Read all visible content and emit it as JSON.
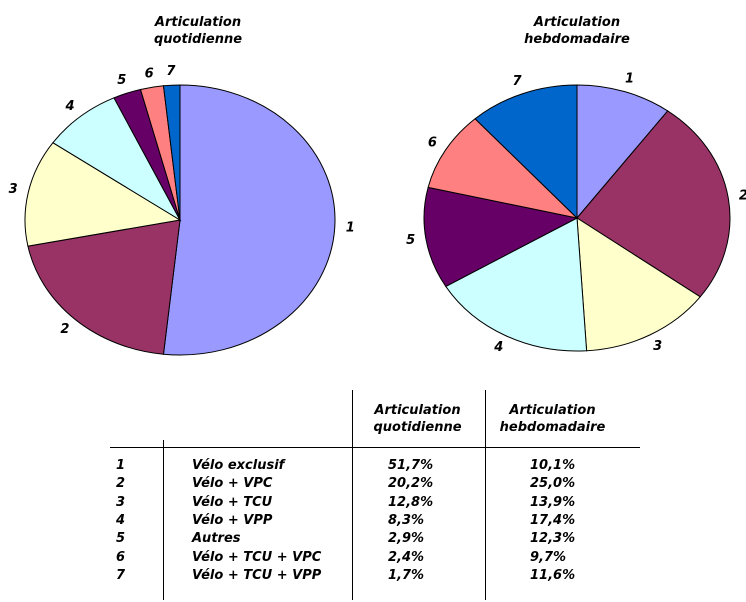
{
  "chart_data": [
    {
      "type": "pie",
      "title": "Articulation quotidienne",
      "categories": [
        "1",
        "2",
        "3",
        "4",
        "5",
        "6",
        "7"
      ],
      "values": [
        51.7,
        20.2,
        12.8,
        8.3,
        2.9,
        2.4,
        1.7
      ],
      "value_labels": [
        "51,7%",
        "20,2%",
        "12,8%",
        "8,3%",
        "2,9%",
        "2,4%",
        "1,7%"
      ],
      "colors": [
        "#9999ff",
        "#993366",
        "#ffffcc",
        "#ccffff",
        "#660066",
        "#ff8080",
        "#0066cc"
      ]
    },
    {
      "type": "pie",
      "title": "Articulation hebdomadaire",
      "categories": [
        "1",
        "2",
        "3",
        "4",
        "5",
        "6",
        "7"
      ],
      "values": [
        10.1,
        25.0,
        13.9,
        17.4,
        12.3,
        9.7,
        11.6
      ],
      "value_labels": [
        "10,1%",
        "25,0%",
        "13,9%",
        "17,4%",
        "12,3%",
        "9,7%",
        "11,6%"
      ],
      "colors": [
        "#9999ff",
        "#993366",
        "#ffffcc",
        "#ccffff",
        "#660066",
        "#ff8080",
        "#0066cc"
      ]
    }
  ],
  "table": {
    "labels": [
      "Vélo exclusif",
      "Vélo + VPC",
      "Vélo + TCU",
      "Vélo + VPP",
      "Autres",
      "Vélo + TCU + VPC",
      "Vélo + TCU + VPP"
    ]
  }
}
